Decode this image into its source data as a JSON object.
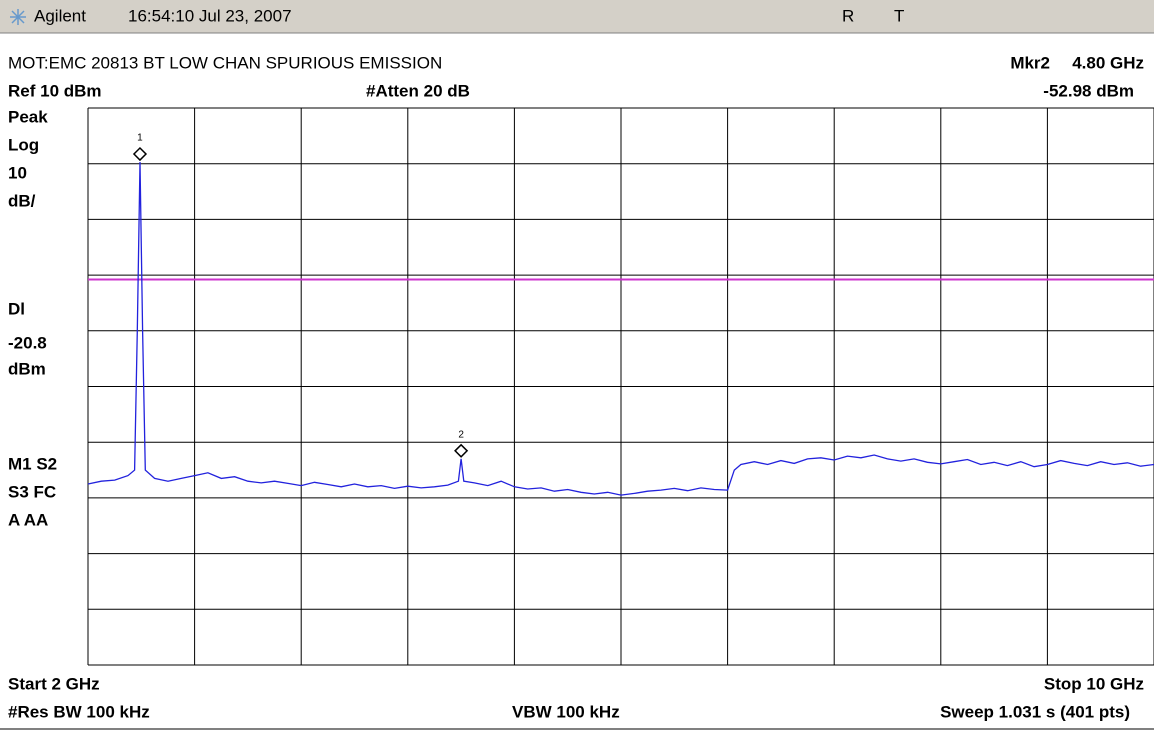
{
  "header": {
    "brand": "Agilent",
    "timestamp": "16:54:10  Jul 23, 2007",
    "flags": [
      "R",
      "T"
    ]
  },
  "chart_data": {
    "type": "line",
    "title": "MOT:EMC 20813 BT LOW CHAN SPURIOUS EMISSION",
    "marker_readout": {
      "name": "Mkr2",
      "freq": "4.80 GHz",
      "level": "-52.98 dBm"
    },
    "ref_level": "Ref 10 dBm",
    "atten": "#Atten 20 dB",
    "left_panel": [
      "Peak",
      "Log",
      "10",
      "dB/"
    ],
    "display_line": {
      "title": "Dl",
      "value": -20.8,
      "unit": "dBm",
      "color": "#cc33cc"
    },
    "status_panel": [
      "M1  S2",
      "S3  FC",
      "A   AA"
    ],
    "start": "Start 2 GHz",
    "stop": "Stop 10 GHz",
    "rbw": "#Res BW 100 kHz",
    "vbw": "VBW 100 kHz",
    "sweep": "Sweep 1.031 s (401 pts)",
    "color": "#2222dd",
    "grid": true,
    "xlim": [
      2,
      10
    ],
    "ylim": [
      -90,
      10
    ],
    "xticks": [
      2,
      2.8,
      3.6,
      4.4,
      5.2,
      6,
      6.8,
      7.6,
      8.4,
      9.2,
      10
    ],
    "yticks": [
      -90,
      -80,
      -70,
      -60,
      -50,
      -40,
      -30,
      -20,
      -10,
      0,
      10
    ],
    "x": [
      2.0,
      2.1,
      2.2,
      2.3,
      2.35,
      2.37,
      2.39,
      2.41,
      2.43,
      2.5,
      2.6,
      2.7,
      2.8,
      2.9,
      3.0,
      3.1,
      3.2,
      3.3,
      3.4,
      3.5,
      3.6,
      3.7,
      3.8,
      3.9,
      4.0,
      4.1,
      4.2,
      4.3,
      4.4,
      4.5,
      4.6,
      4.7,
      4.78,
      4.8,
      4.82,
      4.9,
      5.0,
      5.1,
      5.2,
      5.3,
      5.4,
      5.5,
      5.6,
      5.7,
      5.8,
      5.9,
      6.0,
      6.1,
      6.2,
      6.3,
      6.4,
      6.5,
      6.6,
      6.7,
      6.8,
      6.85,
      6.9,
      7.0,
      7.1,
      7.2,
      7.3,
      7.4,
      7.5,
      7.6,
      7.7,
      7.8,
      7.9,
      8.0,
      8.1,
      8.2,
      8.3,
      8.4,
      8.5,
      8.6,
      8.7,
      8.8,
      8.9,
      9.0,
      9.1,
      9.2,
      9.3,
      9.4,
      9.5,
      9.6,
      9.7,
      9.8,
      9.9,
      10.0
    ],
    "values": [
      -57.5,
      -57,
      -56.8,
      -56,
      -55,
      -30,
      0.3,
      -30,
      -55,
      -56.5,
      -57,
      -56.5,
      -56,
      -55.5,
      -56.5,
      -56.2,
      -57,
      -57.3,
      -57,
      -57.4,
      -57.8,
      -57.2,
      -57.6,
      -58,
      -57.5,
      -58,
      -57.8,
      -58.3,
      -57.9,
      -58.2,
      -58,
      -57.7,
      -57,
      -52.98,
      -57,
      -57.3,
      -57.8,
      -57,
      -58,
      -58.4,
      -58.2,
      -58.8,
      -58.5,
      -59,
      -59.3,
      -59,
      -59.5,
      -59.2,
      -58.8,
      -58.6,
      -58.3,
      -58.7,
      -58.2,
      -58.5,
      -58.6,
      -55,
      -54,
      -53.5,
      -54,
      -53.3,
      -53.8,
      -53,
      -52.8,
      -53.2,
      -52.5,
      -52.8,
      -52.3,
      -53,
      -53.4,
      -53,
      -53.6,
      -53.9,
      -53.5,
      -53.1,
      -54,
      -53.6,
      -54.2,
      -53.5,
      -54.4,
      -54,
      -53.3,
      -53.8,
      -54.2,
      -53.5,
      -54,
      -53.7,
      -54.3,
      -54
    ],
    "markers": [
      {
        "label": "1",
        "x": 2.39,
        "value": 0.3
      },
      {
        "label": "2",
        "x": 4.8,
        "value": -52.98
      }
    ]
  }
}
